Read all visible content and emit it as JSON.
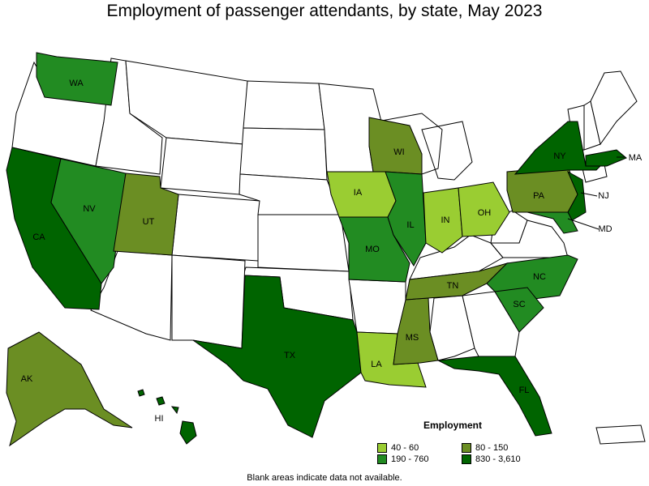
{
  "title": "Employment of passenger attendants, by state, May 2023",
  "legend": {
    "title": "Employment",
    "bins": [
      {
        "label": "40 - 60",
        "color": "#9acd32"
      },
      {
        "label": "80 - 150",
        "color": "#6b8e23"
      },
      {
        "label": "190 - 760",
        "color": "#228b22"
      },
      {
        "label": "830 - 3,610",
        "color": "#006400"
      }
    ]
  },
  "footnote": "Blank areas indicate data not available.",
  "states": {
    "WA": {
      "label": "WA",
      "bin": 2
    },
    "NV": {
      "label": "NV",
      "bin": 2
    },
    "CA": {
      "label": "CA",
      "bin": 3
    },
    "UT": {
      "label": "UT",
      "bin": 1
    },
    "AK": {
      "label": "AK",
      "bin": 1
    },
    "HI": {
      "label": "HI",
      "bin": 3
    },
    "TX": {
      "label": "TX",
      "bin": 3
    },
    "IA": {
      "label": "IA",
      "bin": 0
    },
    "MO": {
      "label": "MO",
      "bin": 2
    },
    "WI": {
      "label": "WI",
      "bin": 1
    },
    "IL": {
      "label": "IL",
      "bin": 2
    },
    "IN": {
      "label": "IN",
      "bin": 0
    },
    "OH": {
      "label": "OH",
      "bin": 0
    },
    "LA": {
      "label": "LA",
      "bin": 0
    },
    "MS": {
      "label": "MS",
      "bin": 1
    },
    "TN": {
      "label": "TN",
      "bin": 1
    },
    "PA": {
      "label": "PA",
      "bin": 1
    },
    "NY": {
      "label": "NY",
      "bin": 3
    },
    "MA": {
      "label": "MA",
      "bin": 3
    },
    "NJ": {
      "label": "NJ",
      "bin": 3
    },
    "MD": {
      "label": "MD",
      "bin": 2
    },
    "NC": {
      "label": "NC",
      "bin": 2
    },
    "SC": {
      "label": "SC",
      "bin": 2
    },
    "FL": {
      "label": "FL",
      "bin": 3
    }
  }
}
